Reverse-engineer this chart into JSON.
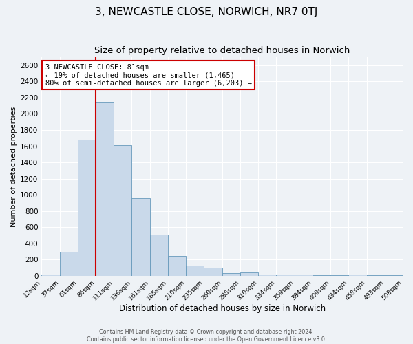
{
  "title": "3, NEWCASTLE CLOSE, NORWICH, NR7 0TJ",
  "subtitle": "Size of property relative to detached houses in Norwich",
  "xlabel": "Distribution of detached houses by size in Norwich",
  "ylabel": "Number of detached properties",
  "bar_labels": [
    "12sqm",
    "37sqm",
    "61sqm",
    "86sqm",
    "111sqm",
    "136sqm",
    "161sqm",
    "185sqm",
    "210sqm",
    "235sqm",
    "260sqm",
    "285sqm",
    "310sqm",
    "334sqm",
    "359sqm",
    "384sqm",
    "409sqm",
    "434sqm",
    "458sqm",
    "483sqm",
    "508sqm"
  ],
  "bar_values": [
    20,
    300,
    1680,
    2150,
    1610,
    960,
    510,
    245,
    125,
    105,
    30,
    40,
    18,
    15,
    12,
    10,
    8,
    18,
    8,
    8
  ],
  "bar_color": "#c9d9ea",
  "bar_edge_color": "#6699bb",
  "ylim": [
    0,
    2700
  ],
  "yticks": [
    0,
    200,
    400,
    600,
    800,
    1000,
    1200,
    1400,
    1600,
    1800,
    2000,
    2200,
    2400,
    2600
  ],
  "vline_x": 3,
  "vline_color": "#cc0000",
  "annotation_title": "3 NEWCASTLE CLOSE: 81sqm",
  "annotation_line1": "← 19% of detached houses are smaller (1,465)",
  "annotation_line2": "80% of semi-detached houses are larger (6,203) →",
  "annotation_box_color": "#ffffff",
  "annotation_box_edge": "#cc0000",
  "footnote1": "Contains HM Land Registry data © Crown copyright and database right 2024.",
  "footnote2": "Contains public sector information licensed under the Open Government Licence v3.0.",
  "background_color": "#eef2f6",
  "plot_background": "#eef2f6",
  "grid_color": "#ffffff",
  "title_fontsize": 11,
  "subtitle_fontsize": 9.5
}
